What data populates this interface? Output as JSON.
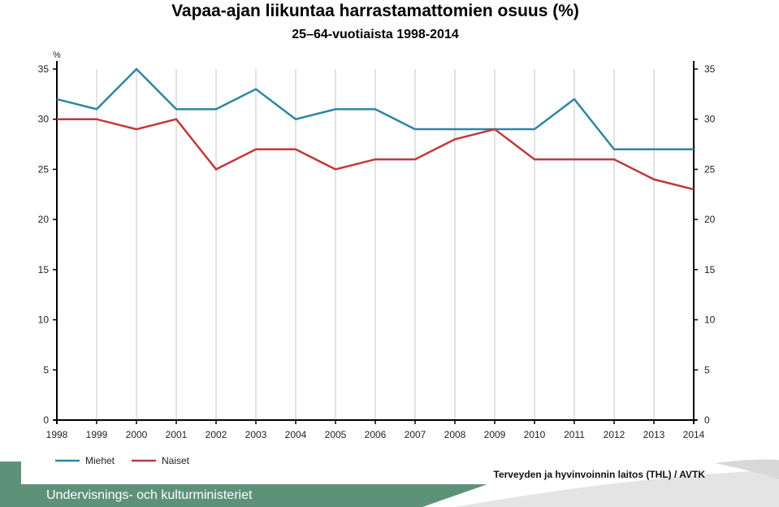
{
  "chart_data": {
    "type": "line",
    "title": "Vapaa-ajan liikuntaa harrastamattomien osuus (%)",
    "subtitle": "25–64-vuotiaista 1998-2014",
    "ylabel": "%",
    "ylim": [
      0,
      35
    ],
    "yticks": [
      0,
      5,
      10,
      15,
      20,
      25,
      30,
      35
    ],
    "categories": [
      "1998",
      "1999",
      "2000",
      "2001",
      "2002",
      "2003",
      "2004",
      "2005",
      "2006",
      "2007",
      "2008",
      "2009",
      "2010",
      "2011",
      "2012",
      "2013",
      "2014"
    ],
    "grid": "vertical",
    "legend_position": "bottom-left",
    "series": [
      {
        "name": "Miehet",
        "color": "#2f85a3",
        "values": [
          32,
          31,
          35,
          31,
          31,
          33,
          30,
          31,
          31,
          29,
          29,
          29,
          29,
          32,
          27,
          27,
          27
        ]
      },
      {
        "name": "Naiset",
        "color": "#c0393b",
        "values": [
          30,
          30,
          29,
          30,
          25,
          27,
          27,
          25,
          26,
          26,
          28,
          29,
          26,
          26,
          26,
          24,
          23
        ]
      }
    ]
  },
  "source": "Terveyden ja hyvinvoinnin laitos (THL) / AVTK",
  "footer": {
    "label": "Undervisnings- och kulturministeriet",
    "color": "#5e9278"
  }
}
